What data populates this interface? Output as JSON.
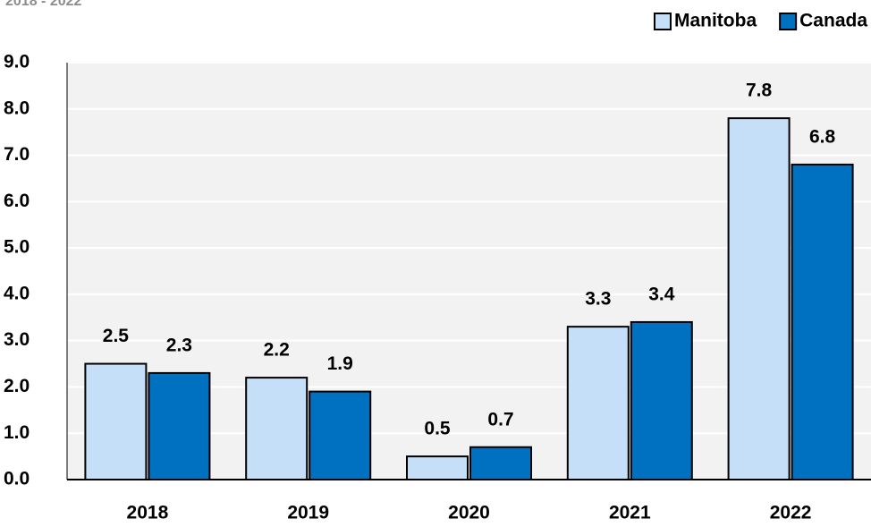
{
  "chart_data": {
    "type": "bar",
    "subtitle": "2018 - 2022",
    "categories": [
      "2018",
      "2019",
      "2020",
      "2021",
      "2022"
    ],
    "series": [
      {
        "name": "Manitoba",
        "color": "#c5dff8",
        "values": [
          2.5,
          2.2,
          0.5,
          3.3,
          7.8
        ]
      },
      {
        "name": "Canada",
        "color": "#0070c0",
        "values": [
          2.3,
          1.9,
          0.7,
          3.4,
          6.8
        ]
      }
    ],
    "ylim": [
      0,
      9
    ],
    "yticks": [
      {
        "value": 0,
        "label": "0.0"
      },
      {
        "value": 1,
        "label": "1.0"
      },
      {
        "value": 2,
        "label": "2.0"
      },
      {
        "value": 3,
        "label": "3.0"
      },
      {
        "value": 4,
        "label": "4.0"
      },
      {
        "value": 5,
        "label": "5.0"
      },
      {
        "value": 6,
        "label": "6.0"
      },
      {
        "value": 7,
        "label": "7.0"
      },
      {
        "value": 8,
        "label": "8.0"
      },
      {
        "value": 9,
        "label": "9.0"
      }
    ],
    "grid": true,
    "legend": "top-right"
  }
}
